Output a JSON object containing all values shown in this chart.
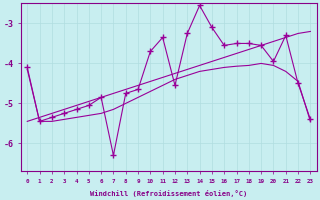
{
  "xlabel": "Windchill (Refroidissement éolien,°C)",
  "hours": [
    0,
    1,
    2,
    3,
    4,
    5,
    6,
    7,
    8,
    9,
    10,
    11,
    12,
    13,
    14,
    15,
    16,
    17,
    18,
    19,
    20,
    21,
    22,
    23
  ],
  "jagged_y": [
    -4.1,
    -5.45,
    -5.35,
    -5.25,
    -5.15,
    -5.05,
    -4.85,
    -6.3,
    -4.75,
    -4.65,
    -3.7,
    -3.35,
    -4.55,
    -3.25,
    -2.55,
    -3.1,
    -3.55,
    -3.5,
    -3.5,
    -3.55,
    -3.95,
    -3.3,
    -4.5,
    -5.4
  ],
  "smooth_y": [
    -4.15,
    -5.45,
    -5.45,
    -5.4,
    -5.35,
    -5.3,
    -5.25,
    -5.15,
    -5.0,
    -4.85,
    -4.7,
    -4.55,
    -4.4,
    -4.3,
    -4.2,
    -4.15,
    -4.1,
    -4.07,
    -4.05,
    -4.0,
    -4.05,
    -4.2,
    -4.45,
    -5.45
  ],
  "straight_y": [
    -5.45,
    -5.35,
    -5.25,
    -5.15,
    -5.05,
    -4.95,
    -4.85,
    -4.75,
    -4.65,
    -4.55,
    -4.45,
    -4.35,
    -4.25,
    -4.15,
    -4.05,
    -3.95,
    -3.85,
    -3.75,
    -3.65,
    -3.55,
    -3.45,
    -3.35,
    -3.25,
    -3.2
  ],
  "line_color": "#990099",
  "bg_color": "#c8eef0",
  "grid_color": "#b0dde0",
  "axis_color": "#880088",
  "ylim": [
    -6.7,
    -2.5
  ],
  "yticks": [
    -6,
    -5,
    -4,
    -3
  ],
  "xlim": [
    -0.5,
    23.5
  ]
}
